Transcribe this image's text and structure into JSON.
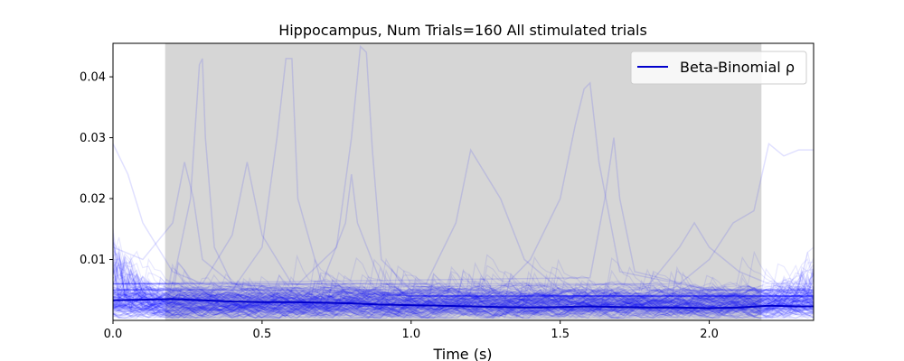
{
  "chart_data": {
    "type": "line",
    "title": "Hippocampus, Num Trials=160 All stimulated trials",
    "xlabel": "Time (s)",
    "ylabel": "",
    "xlim": [
      0.0,
      2.35
    ],
    "ylim": [
      0.0,
      0.0455
    ],
    "x_ticks": [
      0.0,
      0.5,
      1.0,
      1.5,
      2.0
    ],
    "x_tick_labels": [
      "0.0",
      "0.5",
      "1.0",
      "1.5",
      "2.0"
    ],
    "y_ticks": [
      0.01,
      0.02,
      0.03,
      0.04
    ],
    "y_tick_labels": [
      "0.01",
      "0.02",
      "0.03",
      "0.04"
    ],
    "shaded_region": {
      "x_start": 0.175,
      "x_end": 2.175,
      "color": "#d6d6d6"
    },
    "legend": {
      "position": "top-right",
      "entries": [
        "Beta-Binomial ρ"
      ]
    },
    "trial_count": 160,
    "trial_line_color": "#0000ff",
    "series": [
      {
        "name": "Beta-Binomial ρ",
        "color": "#0000cc",
        "x": [
          0.0,
          0.1,
          0.2,
          0.3,
          0.4,
          0.5,
          0.6,
          0.7,
          0.8,
          0.9,
          1.0,
          1.1,
          1.2,
          1.3,
          1.4,
          1.5,
          1.6,
          1.7,
          1.8,
          1.9,
          2.0,
          2.1,
          2.2,
          2.3,
          2.35
        ],
        "values": [
          0.0033,
          0.0034,
          0.0035,
          0.0033,
          0.0031,
          0.003,
          0.003,
          0.0029,
          0.0028,
          0.0026,
          0.0025,
          0.0024,
          0.0023,
          0.0022,
          0.0021,
          0.0022,
          0.0023,
          0.0022,
          0.0021,
          0.0021,
          0.002,
          0.0021,
          0.0024,
          0.0023,
          0.0023
        ]
      }
    ],
    "highlighted_trials": [
      {
        "x": [
          0.0,
          0.2,
          0.26,
          0.29,
          0.3,
          0.31,
          0.34,
          0.4,
          0.6,
          1.0,
          1.5,
          2.0,
          2.35
        ],
        "values": [
          0.006,
          0.006,
          0.02,
          0.042,
          0.043,
          0.03,
          0.012,
          0.006,
          0.005,
          0.004,
          0.004,
          0.004,
          0.004
        ]
      },
      {
        "x": [
          0.0,
          0.4,
          0.5,
          0.55,
          0.58,
          0.6,
          0.62,
          0.7,
          1.0,
          1.5,
          2.0,
          2.35
        ],
        "values": [
          0.005,
          0.005,
          0.012,
          0.03,
          0.043,
          0.043,
          0.02,
          0.006,
          0.004,
          0.004,
          0.004,
          0.004
        ]
      },
      {
        "x": [
          0.0,
          0.6,
          0.75,
          0.8,
          0.83,
          0.85,
          0.87,
          0.9,
          1.0,
          1.5,
          2.0,
          2.35
        ],
        "values": [
          0.005,
          0.005,
          0.012,
          0.03,
          0.045,
          0.044,
          0.028,
          0.01,
          0.005,
          0.004,
          0.004,
          0.004
        ]
      },
      {
        "x": [
          0.0,
          1.3,
          1.4,
          1.5,
          1.55,
          1.58,
          1.6,
          1.63,
          1.7,
          2.0,
          2.35
        ],
        "values": [
          0.005,
          0.005,
          0.01,
          0.02,
          0.032,
          0.038,
          0.039,
          0.026,
          0.008,
          0.005,
          0.005
        ]
      },
      {
        "x": [
          0.0,
          0.7,
          0.78,
          0.8,
          0.82,
          0.9,
          1.5,
          2.0,
          2.35
        ],
        "values": [
          0.005,
          0.006,
          0.016,
          0.024,
          0.016,
          0.006,
          0.004,
          0.004,
          0.004
        ]
      },
      {
        "x": [
          0.0,
          1.05,
          1.15,
          1.2,
          1.3,
          1.38,
          1.5,
          2.0,
          2.35
        ],
        "values": [
          0.006,
          0.006,
          0.016,
          0.028,
          0.02,
          0.01,
          0.005,
          0.005,
          0.005
        ]
      },
      {
        "x": [
          0.0,
          1.6,
          1.65,
          1.68,
          1.7,
          1.75,
          2.0,
          2.35
        ],
        "values": [
          0.006,
          0.007,
          0.02,
          0.03,
          0.02,
          0.008,
          0.005,
          0.005
        ]
      },
      {
        "x": [
          0.0,
          0.05,
          0.1,
          0.2,
          0.3,
          0.5,
          1.0,
          1.5,
          2.0,
          2.35
        ],
        "values": [
          0.029,
          0.024,
          0.016,
          0.008,
          0.006,
          0.005,
          0.004,
          0.004,
          0.004,
          0.004
        ]
      },
      {
        "x": [
          0.0,
          0.1,
          0.2,
          0.24,
          0.27,
          0.3,
          0.4,
          1.0,
          2.35
        ],
        "values": [
          0.012,
          0.01,
          0.016,
          0.026,
          0.02,
          0.01,
          0.006,
          0.004,
          0.004
        ]
      },
      {
        "x": [
          0.0,
          1.8,
          1.9,
          1.95,
          2.0,
          2.1,
          2.2,
          2.35
        ],
        "values": [
          0.006,
          0.006,
          0.012,
          0.016,
          0.012,
          0.008,
          0.006,
          0.006
        ]
      },
      {
        "x": [
          0.0,
          1.9,
          2.0,
          2.08,
          2.15,
          2.2,
          2.25,
          2.3,
          2.35
        ],
        "values": [
          0.005,
          0.006,
          0.01,
          0.016,
          0.018,
          0.029,
          0.027,
          0.028,
          0.028
        ]
      },
      {
        "x": [
          0.0,
          0.3,
          0.4,
          0.45,
          0.5,
          0.6,
          1.0,
          2.35
        ],
        "values": [
          0.006,
          0.006,
          0.014,
          0.026,
          0.014,
          0.006,
          0.004,
          0.004
        ]
      }
    ]
  }
}
